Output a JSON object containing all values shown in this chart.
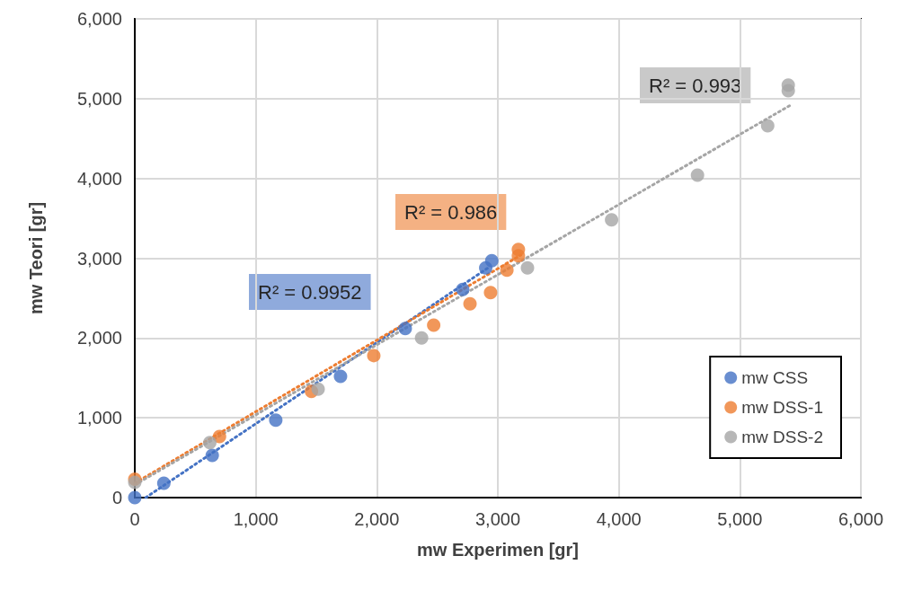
{
  "chart_data": {
    "type": "scatter",
    "xlabel": "mw Experimen [gr]",
    "ylabel": "mw Teori [gr]",
    "xlim": [
      0,
      6000
    ],
    "ylim": [
      0,
      6000
    ],
    "xticks": [
      0,
      {
        "value": 1000,
        "label": "1,000"
      },
      {
        "value": 2000,
        "label": "2,000"
      },
      {
        "value": 3000,
        "label": "3,000"
      },
      {
        "value": 4000,
        "label": "4,000"
      },
      {
        "value": 5000,
        "label": "5,000"
      },
      {
        "value": 6000,
        "label": "6,000"
      }
    ],
    "yticks": [
      0,
      {
        "value": 1000,
        "label": "1,000"
      },
      {
        "value": 2000,
        "label": "2,000"
      },
      {
        "value": 3000,
        "label": "3,000"
      },
      {
        "value": 4000,
        "label": "4,000"
      },
      {
        "value": 5000,
        "label": "5,000"
      },
      {
        "value": 6000,
        "label": "6,000"
      }
    ],
    "grid": true,
    "legend": "bottom right",
    "marker": "circle",
    "annotations": [
      "R² = 0.9952",
      "R² = 0.986",
      "R² = 0.993"
    ],
    "series": [
      {
        "type": "line",
        "color": "#4472c4",
        "marker": "none",
        "line_style": "dotted",
        "x": [
          90,
          2920
        ],
        "values": [
          0,
          2880
        ]
      },
      {
        "type": "line",
        "color": "#ed7d31",
        "marker": "none",
        "line_style": "dotted",
        "x": [
          0,
          3190
        ],
        "values": [
          180,
          3040
        ]
      },
      {
        "type": "line",
        "color": "#a5a5a5",
        "marker": "none",
        "line_style": "dotted",
        "x": [
          0,
          5420
        ],
        "values": [
          160,
          4920
        ]
      },
      {
        "name": "mw CSS",
        "color": "#4472c4",
        "x": [
          0,
          240,
          640,
          1165,
          1700,
          2235,
          2710,
          2900,
          2950
        ],
        "values": [
          0,
          180,
          530,
          970,
          1520,
          2120,
          2610,
          2880,
          2970
        ]
      },
      {
        "name": "mw DSS-1",
        "color": "#ed7d31",
        "x": [
          0,
          700,
          1460,
          1975,
          2470,
          2770,
          2940,
          3075,
          3170,
          3170
        ],
        "values": [
          230,
          765,
          1330,
          1780,
          2160,
          2430,
          2570,
          2850,
          3030,
          3110
        ]
      },
      {
        "name": "mw DSS-2",
        "color": "#a5a5a5",
        "x": [
          0,
          620,
          1515,
          2370,
          3245,
          3940,
          4650,
          5230,
          5400,
          5400
        ],
        "values": [
          190,
          690,
          1360,
          2000,
          2880,
          3480,
          4040,
          4660,
          5100,
          5170
        ]
      }
    ]
  }
}
